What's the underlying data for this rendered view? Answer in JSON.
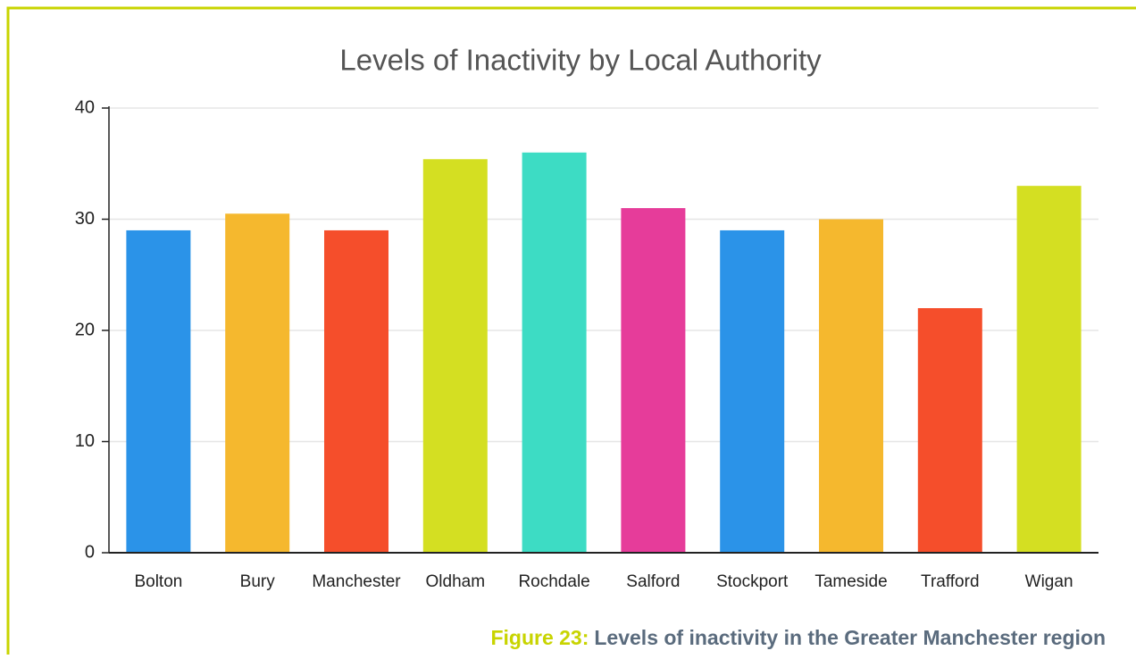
{
  "chart_data": {
    "type": "bar",
    "title": "Levels of Inactivity by Local Authority",
    "categories": [
      "Bolton",
      "Bury",
      "Manchester",
      "Oldham",
      "Rochdale",
      "Salford",
      "Stockport",
      "Tameside",
      "Trafford",
      "Wigan"
    ],
    "values": [
      29,
      30.5,
      29,
      35.4,
      36,
      31,
      29,
      30,
      22,
      33
    ],
    "colors": [
      "#2b93e8",
      "#f5b82e",
      "#f54e2b",
      "#d4df22",
      "#3ddcc4",
      "#e63c9a",
      "#2b93e8",
      "#f5b82e",
      "#f54e2b",
      "#d4df22"
    ],
    "ylim": [
      0,
      40
    ],
    "yticks": [
      0,
      10,
      20,
      30,
      40
    ],
    "grid": true
  },
  "caption": {
    "label": "Figure 23:",
    "text": "Levels of inactivity in the Greater Manchester region"
  }
}
